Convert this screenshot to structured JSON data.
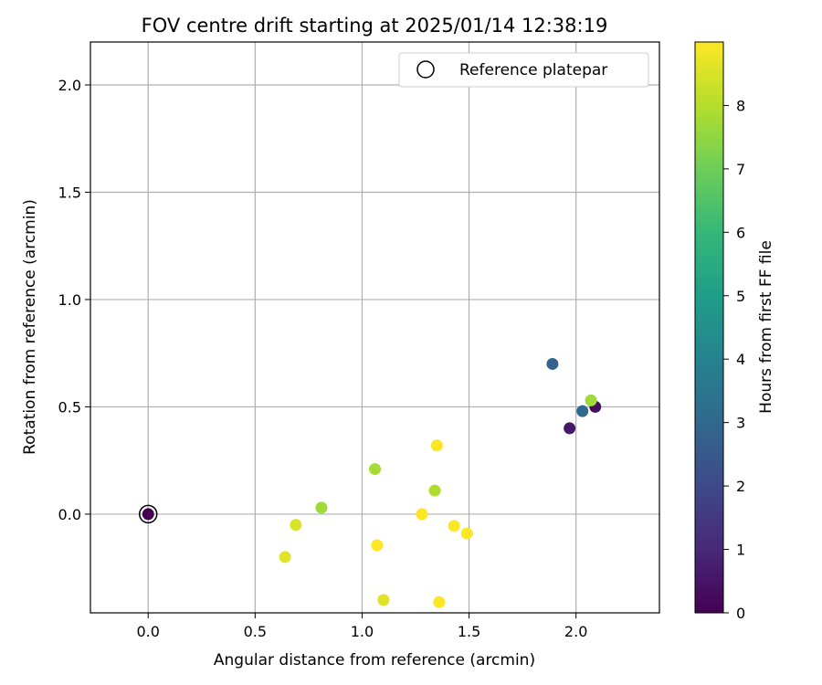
{
  "chart_data": {
    "type": "scatter",
    "title": "FOV centre drift starting at 2025/01/14 12:38:19",
    "xlabel": "Angular distance from reference (arcmin)",
    "ylabel": "Rotation from reference (arcmin)",
    "xlim": [
      -0.27,
      2.39
    ],
    "ylim": [
      -0.46,
      2.2
    ],
    "xticks": [
      "0.0",
      "0.5",
      "1.0",
      "1.5",
      "2.0"
    ],
    "yticks": [
      "0.0",
      "0.5",
      "1.0",
      "1.5",
      "2.0"
    ],
    "grid": true,
    "legend": {
      "label": "Reference platepar",
      "position": "top-right"
    },
    "reference_point": {
      "x": 0.0,
      "y": 0.0
    },
    "colorbar": {
      "label": "Hours from first FF file",
      "range": [
        0,
        9
      ],
      "ticks": [
        "0",
        "1",
        "2",
        "3",
        "4",
        "5",
        "6",
        "7",
        "8"
      ],
      "colormap": "viridis"
    },
    "points": [
      {
        "x": 0.0,
        "y": 0.0,
        "c": 0.0
      },
      {
        "x": 2.09,
        "y": 0.5,
        "c": 0.3
      },
      {
        "x": 1.97,
        "y": 0.4,
        "c": 0.6
      },
      {
        "x": 1.89,
        "y": 0.7,
        "c": 2.8
      },
      {
        "x": 2.03,
        "y": 0.48,
        "c": 3.0
      },
      {
        "x": 2.07,
        "y": 0.53,
        "c": 7.7
      },
      {
        "x": 1.06,
        "y": 0.21,
        "c": 7.8
      },
      {
        "x": 0.81,
        "y": 0.03,
        "c": 7.7
      },
      {
        "x": 1.34,
        "y": 0.11,
        "c": 7.9
      },
      {
        "x": 0.69,
        "y": -0.05,
        "c": 8.5
      },
      {
        "x": 0.64,
        "y": -0.2,
        "c": 8.6
      },
      {
        "x": 1.1,
        "y": -0.4,
        "c": 8.6
      },
      {
        "x": 1.35,
        "y": 0.32,
        "c": 9.0
      },
      {
        "x": 1.28,
        "y": 0.0,
        "c": 9.0
      },
      {
        "x": 1.43,
        "y": -0.055,
        "c": 9.0
      },
      {
        "x": 1.49,
        "y": -0.09,
        "c": 9.0
      },
      {
        "x": 1.07,
        "y": -0.145,
        "c": 9.0
      },
      {
        "x": 1.36,
        "y": -0.41,
        "c": 9.0
      }
    ]
  }
}
